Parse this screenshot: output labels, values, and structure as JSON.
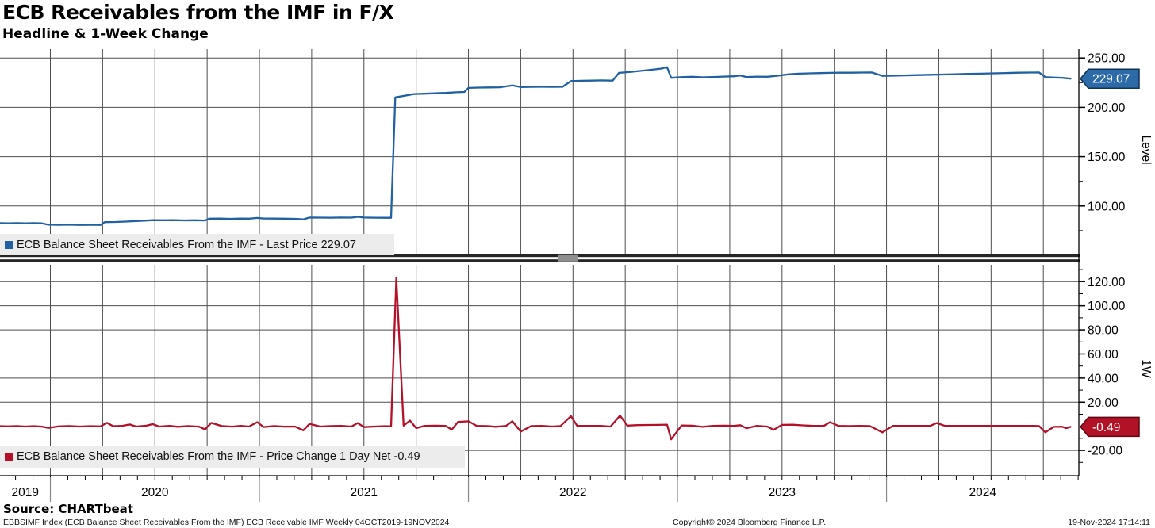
{
  "header": {
    "title": "ECB Receivables from the IMF in F/X",
    "subtitle": "Headline & 1-Week Change"
  },
  "colors": {
    "level_line": "#2060a3",
    "level_badge_fill": "#2d6ba8",
    "level_badge_border": "#0f3357",
    "change_line": "#b5102a",
    "change_badge_fill": "#b11226",
    "change_badge_border": "#5f0812",
    "grid": "#4d4d4d",
    "legend_bg": "#ececec"
  },
  "top_panel": {
    "legend": "ECB Balance Sheet Receivables From the IMF - Last Price 229.07",
    "axis_label": "Level",
    "last_badge": "229.07"
  },
  "bottom_panel": {
    "legend": "ECB Balance Sheet Receivables From the IMF - Price Change 1 Day Net -0.49",
    "axis_label": "1W",
    "last_badge": "-0.49"
  },
  "x_axis": {
    "year_labels": [
      "2019",
      "2020",
      "2021",
      "2022",
      "2023",
      "2024"
    ],
    "years": [
      2019,
      2020,
      2021,
      2022,
      2023,
      2024
    ]
  },
  "footer": {
    "source": "Source: CHARTbeat",
    "descriptor": "EBBSIMF Index (ECB Balance Sheet Receivables From the IMF) ECB Receivable IMF  Weekly 04OCT2019-19NOV2024",
    "copyright": "Copyright© 2024 Bloomberg Finance L.P.",
    "timestamp": "19-Nov-2024 17:14:11"
  },
  "chart_data": [
    {
      "type": "line",
      "panel": "top",
      "title": "Headline level",
      "ylabel": "Level",
      "x_units": "decimal_year",
      "xlim": [
        2019.759,
        2024.92
      ],
      "ylim": [
        50,
        259
      ],
      "yticks_major": [
        100,
        150,
        200,
        250
      ],
      "yticks_minor": [
        75,
        125,
        175,
        225
      ],
      "grid": "quarterly vertical, major horizontal",
      "legend_position": "bottom-left",
      "last_value": 229.07,
      "series": [
        {
          "name": "ECB Balance Sheet Receivables From the IMF - Last Price",
          "points": [
            [
              2019.76,
              82.6
            ],
            [
              2019.8,
              82.5
            ],
            [
              2019.84,
              82.6
            ],
            [
              2019.88,
              82.5
            ],
            [
              2019.92,
              82.6
            ],
            [
              2019.96,
              82.4
            ],
            [
              2019.99,
              81.0
            ],
            [
              2020.04,
              80.9
            ],
            [
              2020.09,
              81.0
            ],
            [
              2020.14,
              80.8
            ],
            [
              2020.19,
              80.9
            ],
            [
              2020.24,
              80.8
            ],
            [
              2020.26,
              83.6
            ],
            [
              2020.31,
              83.8
            ],
            [
              2020.36,
              84.2
            ],
            [
              2020.41,
              84.7
            ],
            [
              2020.46,
              85.2
            ],
            [
              2020.49,
              85.6
            ],
            [
              2020.54,
              85.5
            ],
            [
              2020.59,
              85.6
            ],
            [
              2020.64,
              85.4
            ],
            [
              2020.69,
              85.5
            ],
            [
              2020.74,
              85.3
            ],
            [
              2020.76,
              87.1
            ],
            [
              2020.81,
              87.2
            ],
            [
              2020.86,
              87.0
            ],
            [
              2020.91,
              87.2
            ],
            [
              2020.95,
              87.1
            ],
            [
              2020.99,
              87.9
            ],
            [
              2021.02,
              87.3
            ],
            [
              2021.07,
              87.2
            ],
            [
              2021.12,
              87.1
            ],
            [
              2021.17,
              87.0
            ],
            [
              2021.21,
              86.4
            ],
            [
              2021.24,
              88.3
            ],
            [
              2021.29,
              88.2
            ],
            [
              2021.34,
              88.1
            ],
            [
              2021.39,
              88.3
            ],
            [
              2021.44,
              88.2
            ],
            [
              2021.47,
              89.0
            ],
            [
              2021.5,
              88.3
            ],
            [
              2021.55,
              88.1
            ],
            [
              2021.6,
              88.0
            ],
            [
              2021.63,
              88.0
            ],
            [
              2021.65,
              210.2
            ],
            [
              2021.7,
              212.0
            ],
            [
              2021.74,
              213.5
            ],
            [
              2021.79,
              213.8
            ],
            [
              2021.84,
              214.2
            ],
            [
              2021.89,
              214.6
            ],
            [
              2021.94,
              215.3
            ],
            [
              2021.98,
              215.6
            ],
            [
              2022.0,
              219.7
            ],
            [
              2022.05,
              220.0
            ],
            [
              2022.1,
              220.2
            ],
            [
              2022.15,
              220.3
            ],
            [
              2022.21,
              222.3
            ],
            [
              2022.25,
              220.6
            ],
            [
              2022.3,
              220.7
            ],
            [
              2022.35,
              220.8
            ],
            [
              2022.4,
              220.7
            ],
            [
              2022.45,
              220.8
            ],
            [
              2022.49,
              226.6
            ],
            [
              2022.54,
              226.9
            ],
            [
              2022.59,
              227.1
            ],
            [
              2022.64,
              227.3
            ],
            [
              2022.69,
              227.1
            ],
            [
              2022.72,
              235.0
            ],
            [
              2022.77,
              235.8
            ],
            [
              2022.82,
              236.9
            ],
            [
              2022.87,
              238.0
            ],
            [
              2022.92,
              239.2
            ],
            [
              2022.95,
              240.7
            ],
            [
              2022.97,
              229.9
            ],
            [
              2023.02,
              230.6
            ],
            [
              2023.07,
              231.0
            ],
            [
              2023.12,
              230.5
            ],
            [
              2023.17,
              230.8
            ],
            [
              2023.22,
              231.2
            ],
            [
              2023.27,
              231.5
            ],
            [
              2023.3,
              232.3
            ],
            [
              2023.33,
              230.8
            ],
            [
              2023.38,
              231.2
            ],
            [
              2023.43,
              231.0
            ],
            [
              2023.48,
              232.1
            ],
            [
              2023.53,
              233.4
            ],
            [
              2023.58,
              234.2
            ],
            [
              2023.63,
              234.5
            ],
            [
              2023.68,
              234.7
            ],
            [
              2023.73,
              235.0
            ],
            [
              2023.78,
              235.2
            ],
            [
              2023.83,
              235.1
            ],
            [
              2023.88,
              235.3
            ],
            [
              2023.93,
              235.4
            ],
            [
              2023.98,
              231.9
            ],
            [
              2024.03,
              232.1
            ],
            [
              2024.09,
              232.4
            ],
            [
              2024.15,
              232.7
            ],
            [
              2024.21,
              233.0
            ],
            [
              2024.27,
              233.3
            ],
            [
              2024.33,
              233.6
            ],
            [
              2024.39,
              233.9
            ],
            [
              2024.45,
              234.2
            ],
            [
              2024.51,
              234.5
            ],
            [
              2024.57,
              234.8
            ],
            [
              2024.63,
              235.1
            ],
            [
              2024.69,
              235.3
            ],
            [
              2024.73,
              235.4
            ],
            [
              2024.76,
              230.6
            ],
            [
              2024.8,
              230.2
            ],
            [
              2024.84,
              230.0
            ],
            [
              2024.86,
              229.5
            ],
            [
              2024.88,
              229.07
            ]
          ]
        }
      ]
    },
    {
      "type": "line",
      "panel": "bottom",
      "title": "1-Week Change",
      "ylabel": "1W",
      "x_units": "decimal_year",
      "xlim": [
        2019.759,
        2024.92
      ],
      "ylim": [
        -41,
        134
      ],
      "yticks_major": [
        -20,
        20,
        40,
        60,
        80,
        100,
        120
      ],
      "yticks_minor": [
        -30,
        -10,
        10,
        30,
        50,
        70,
        90,
        110,
        130
      ],
      "grid": "quarterly vertical, major horizontal",
      "legend_position": "bottom-left",
      "last_value": -0.49,
      "series": [
        {
          "name": "ECB Balance Sheet Receivables From the IMF - Price Change 1 Day Net",
          "points": [
            [
              2019.76,
              0.1
            ],
            [
              2019.8,
              -0.1
            ],
            [
              2019.84,
              0.2
            ],
            [
              2019.88,
              -0.2
            ],
            [
              2019.92,
              0.1
            ],
            [
              2019.96,
              -0.3
            ],
            [
              2019.99,
              -1.4
            ],
            [
              2020.04,
              -0.1
            ],
            [
              2020.09,
              0.2
            ],
            [
              2020.14,
              -0.2
            ],
            [
              2020.19,
              0.1
            ],
            [
              2020.24,
              -0.1
            ],
            [
              2020.27,
              2.9
            ],
            [
              2020.3,
              0.1
            ],
            [
              2020.34,
              0.3
            ],
            [
              2020.38,
              1.5
            ],
            [
              2020.41,
              -0.2
            ],
            [
              2020.46,
              0.5
            ],
            [
              2020.49,
              1.8
            ],
            [
              2020.52,
              -0.2
            ],
            [
              2020.57,
              0.3
            ],
            [
              2020.61,
              -0.4
            ],
            [
              2020.66,
              0.2
            ],
            [
              2020.71,
              -0.3
            ],
            [
              2020.74,
              -2.6
            ],
            [
              2020.77,
              2.8
            ],
            [
              2020.82,
              0.2
            ],
            [
              2020.87,
              -0.3
            ],
            [
              2020.91,
              0.4
            ],
            [
              2020.95,
              -0.2
            ],
            [
              2020.99,
              3.4
            ],
            [
              2021.02,
              -0.6
            ],
            [
              2021.07,
              0.2
            ],
            [
              2021.12,
              -0.3
            ],
            [
              2021.17,
              -0.2
            ],
            [
              2021.21,
              -3.4
            ],
            [
              2021.24,
              2.0
            ],
            [
              2021.29,
              -0.2
            ],
            [
              2021.34,
              0.2
            ],
            [
              2021.39,
              0.3
            ],
            [
              2021.44,
              -0.2
            ],
            [
              2021.47,
              2.7
            ],
            [
              2021.5,
              -0.7
            ],
            [
              2021.55,
              -0.2
            ],
            [
              2021.6,
              0.1
            ],
            [
              2021.63,
              -0.1
            ],
            [
              2021.655,
              122.99
            ],
            [
              2021.69,
              0.6
            ],
            [
              2021.72,
              4.7
            ],
            [
              2021.75,
              -1.5
            ],
            [
              2021.79,
              0.4
            ],
            [
              2021.84,
              0.5
            ],
            [
              2021.89,
              0.4
            ],
            [
              2021.92,
              -2.8
            ],
            [
              2021.95,
              3.6
            ],
            [
              2022.0,
              4.1
            ],
            [
              2022.04,
              0.3
            ],
            [
              2022.09,
              0.2
            ],
            [
              2022.13,
              -0.4
            ],
            [
              2022.18,
              0.3
            ],
            [
              2022.21,
              4.2
            ],
            [
              2022.25,
              -4.4
            ],
            [
              2022.3,
              0.2
            ],
            [
              2022.35,
              0.3
            ],
            [
              2022.4,
              -0.2
            ],
            [
              2022.44,
              0.2
            ],
            [
              2022.49,
              8.4
            ],
            [
              2022.52,
              0.4
            ],
            [
              2022.58,
              0.3
            ],
            [
              2022.63,
              0.4
            ],
            [
              2022.68,
              -0.2
            ],
            [
              2022.725,
              8.9
            ],
            [
              2022.76,
              0.6
            ],
            [
              2022.81,
              1.0
            ],
            [
              2022.86,
              1.1
            ],
            [
              2022.91,
              1.2
            ],
            [
              2022.95,
              1.4
            ],
            [
              2022.97,
              -10.9
            ],
            [
              2023.02,
              0.7
            ],
            [
              2023.07,
              0.5
            ],
            [
              2023.12,
              -0.5
            ],
            [
              2023.17,
              0.4
            ],
            [
              2023.22,
              0.5
            ],
            [
              2023.27,
              0.4
            ],
            [
              2023.3,
              0.9
            ],
            [
              2023.33,
              -1.6
            ],
            [
              2023.38,
              0.4
            ],
            [
              2023.43,
              -0.3
            ],
            [
              2023.46,
              -2.9
            ],
            [
              2023.5,
              1.2
            ],
            [
              2023.55,
              1.3
            ],
            [
              2023.6,
              0.8
            ],
            [
              2023.65,
              0.3
            ],
            [
              2023.7,
              0.4
            ],
            [
              2023.73,
              3.4
            ],
            [
              2023.77,
              0.3
            ],
            [
              2023.82,
              0.2
            ],
            [
              2023.87,
              0.3
            ],
            [
              2023.92,
              0.2
            ],
            [
              2023.98,
              -5.1
            ],
            [
              2024.03,
              0.3
            ],
            [
              2024.09,
              0.3
            ],
            [
              2024.15,
              0.4
            ],
            [
              2024.21,
              0.4
            ],
            [
              2024.24,
              2.7
            ],
            [
              2024.28,
              0.3
            ],
            [
              2024.34,
              0.4
            ],
            [
              2024.4,
              0.3
            ],
            [
              2024.46,
              0.4
            ],
            [
              2024.52,
              0.4
            ],
            [
              2024.58,
              0.3
            ],
            [
              2024.64,
              0.4
            ],
            [
              2024.7,
              0.3
            ],
            [
              2024.73,
              0.2
            ],
            [
              2024.76,
              -5.0
            ],
            [
              2024.8,
              -0.5
            ],
            [
              2024.84,
              -0.4
            ],
            [
              2024.86,
              -1.5
            ],
            [
              2024.88,
              -0.49
            ]
          ]
        }
      ]
    }
  ]
}
